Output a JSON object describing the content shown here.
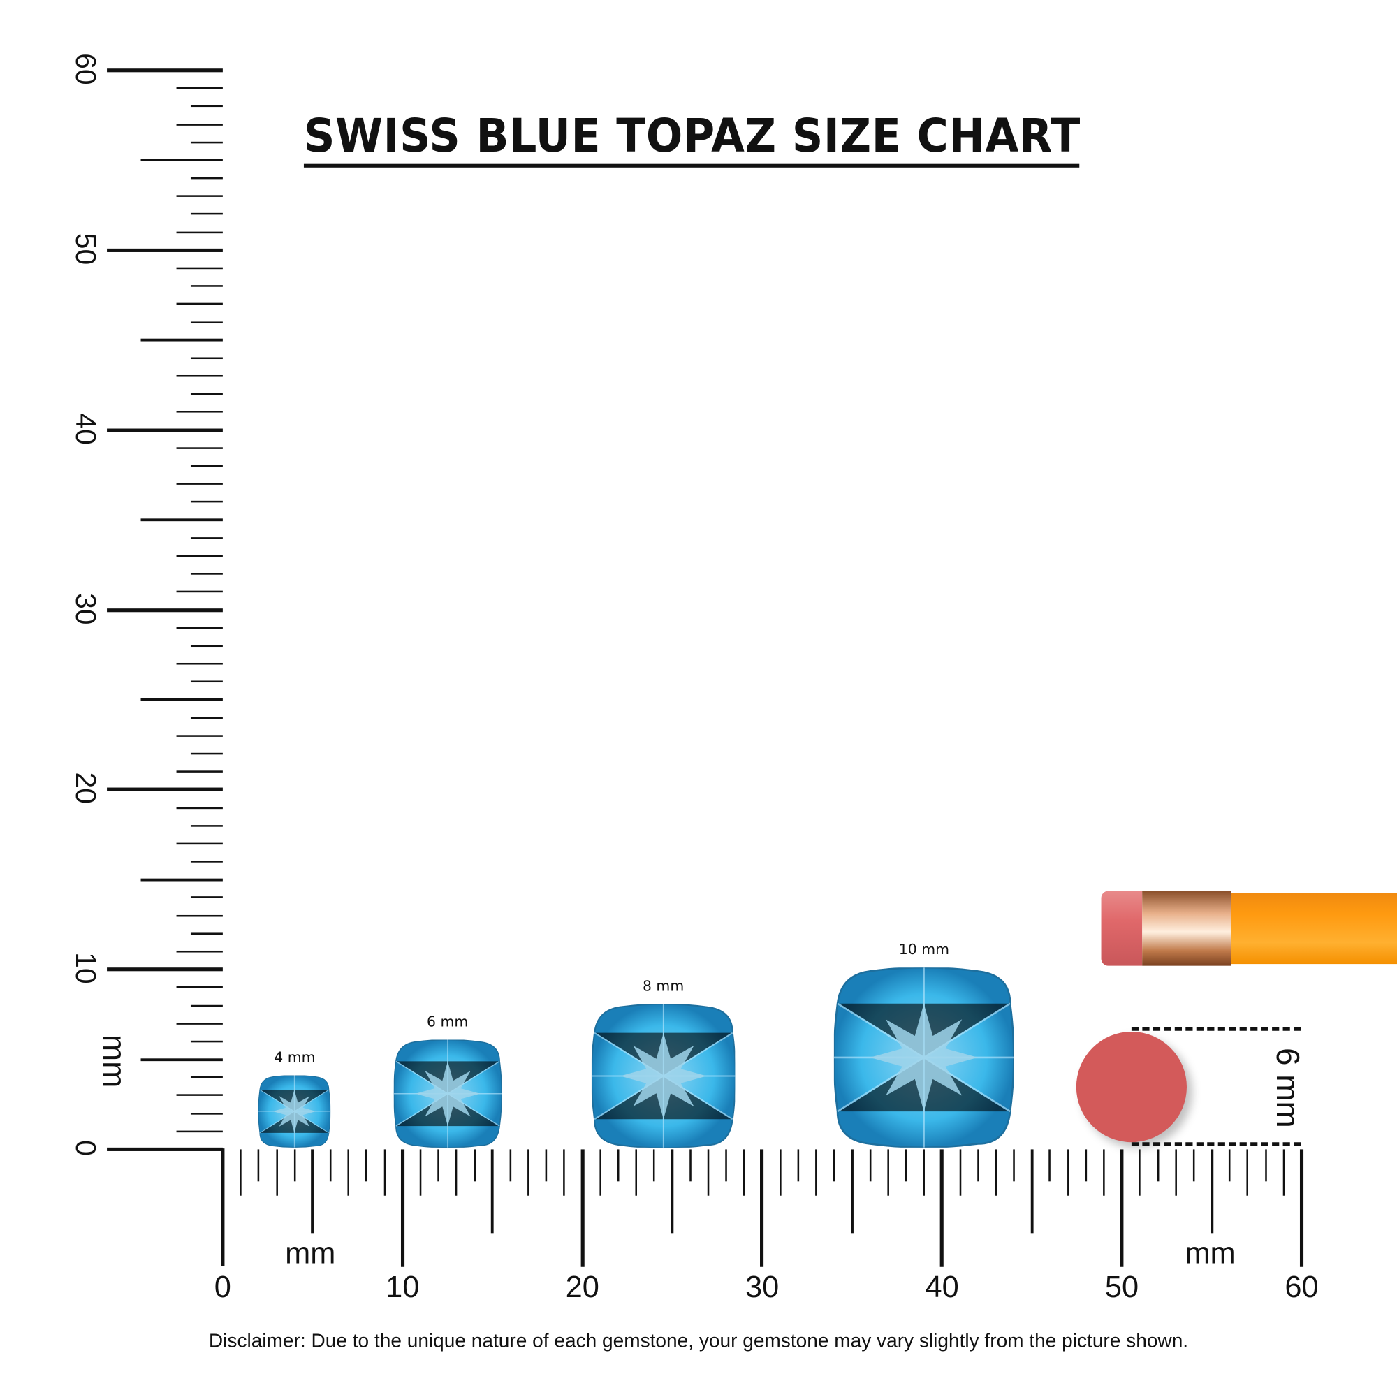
{
  "title": "SWISS BLUE TOPAZ SIZE CHART",
  "disclaimer": "Disclaimer: Due to the unique nature of each gemstone, your gemstone may vary slightly from the picture shown.",
  "ruler": {
    "unit": "mm",
    "min": 0,
    "max": 60,
    "labels": [
      "0",
      "10",
      "20",
      "30",
      "40",
      "50",
      "60"
    ]
  },
  "gems": [
    {
      "label": "4 mm",
      "size_mm": 4,
      "position_mm": 4
    },
    {
      "label": "6 mm",
      "size_mm": 6,
      "position_mm": 12.5
    },
    {
      "label": "8 mm",
      "size_mm": 8,
      "position_mm": 24.5
    },
    {
      "label": "10 mm",
      "size_mm": 10,
      "position_mm": 39
    }
  ],
  "eraser_reference": {
    "label": "6 mm",
    "size_mm": 6,
    "color": "#d35a5a"
  },
  "colors": {
    "gem": "#3bb8ea",
    "pencil": "#ff9a10",
    "ferrule": "#d9925f",
    "eraser": "#e0686a"
  }
}
